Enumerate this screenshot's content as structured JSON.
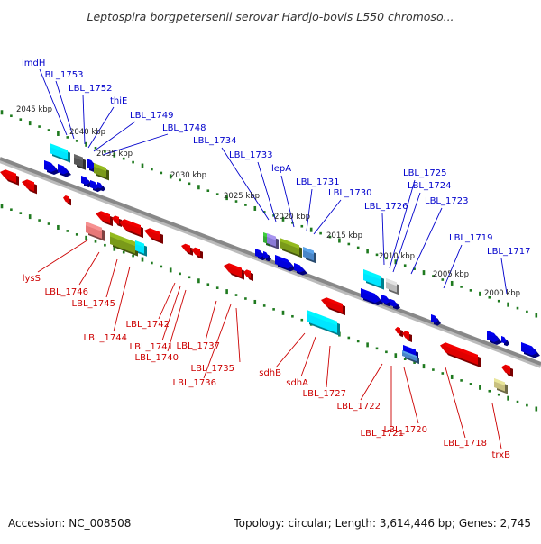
{
  "title": "Leptospira borgpetersenii serovar Hardjo-bovis L550 chromoso...",
  "footer": {
    "accession": "Accession: NC_008508",
    "summary": "Topology: circular; Length: 3,614,446 bp; Genes: 2,745"
  },
  "colors": {
    "plus_strand": "#0000cc",
    "minus_strand": "#cc0000",
    "backbone": "#888888",
    "scale_ticks": "#1f7a1f"
  },
  "scale_labels": [
    "2045 kbp",
    "2040 kbp",
    "2035 kbp",
    "2030 kbp",
    "2025 kbp",
    "2020 kbp",
    "2015 kbp",
    "2010 kbp",
    "2005 kbp",
    "2000 kbp"
  ],
  "upper_gene_labels": [
    "imdH",
    "LBL_1753",
    "LBL_1752",
    "thiE",
    "LBL_1749",
    "LBL_1748",
    "LBL_1734",
    "LBL_1733",
    "lepA",
    "LBL_1731",
    "LBL_1730",
    "LBL_1726",
    "LBL_1725",
    "LBL_1724",
    "LBL_1723",
    "LBL_1719",
    "LBL_1717"
  ],
  "lower_gene_labels": [
    "lysS",
    "LBL_1746",
    "LBL_1745",
    "LBL_1744",
    "LBL_1742",
    "LBL_1741",
    "LBL_1740",
    "LBL_1737",
    "LBL_1736",
    "LBL_1735",
    "sdhB",
    "sdhA",
    "LBL_1727",
    "LBL_1722",
    "LBL_1721",
    "LBL_1720",
    "LBL_1718",
    "trxB"
  ]
}
